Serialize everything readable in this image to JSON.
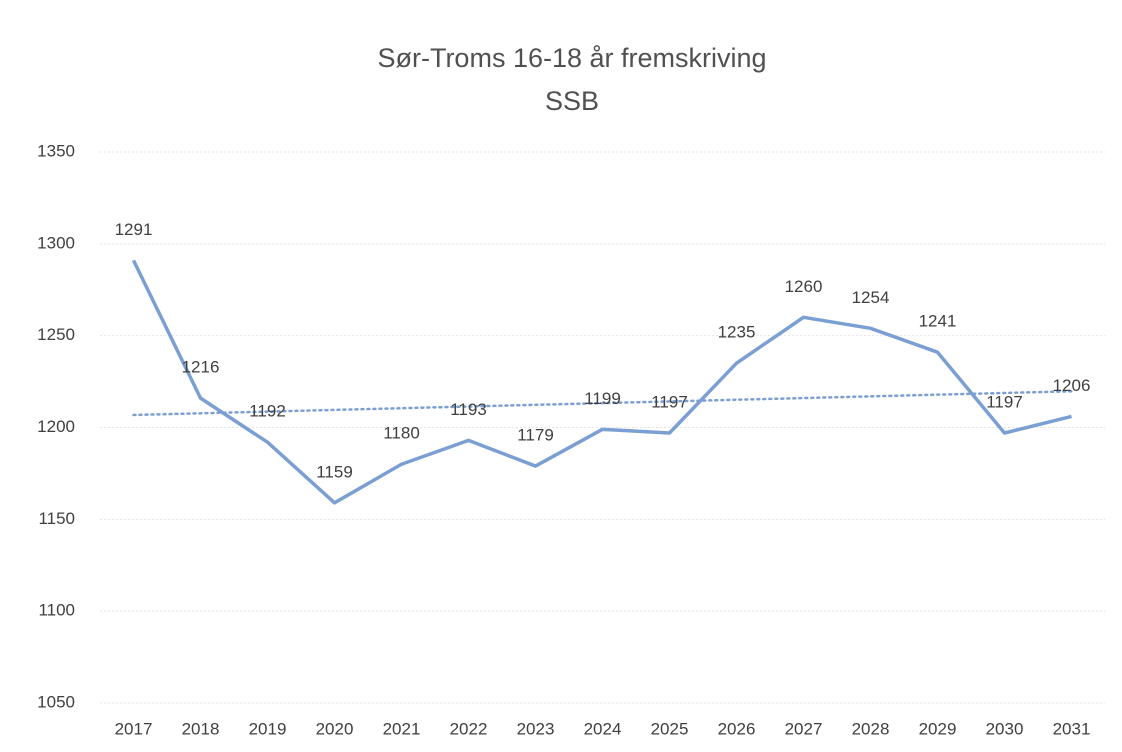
{
  "chart_data": {
    "type": "line",
    "title": "Sør-Troms 16-18 år fremskriving",
    "subtitle": "SSB",
    "categories": [
      "2017",
      "2018",
      "2019",
      "2020",
      "2021",
      "2022",
      "2023",
      "2024",
      "2025",
      "2026",
      "2027",
      "2028",
      "2029",
      "2030",
      "2031"
    ],
    "series": [
      {
        "name": "Sør-Troms 16-18 år",
        "color": "#7b9fd2",
        "values": [
          1291,
          1216,
          1192,
          1159,
          1180,
          1193,
          1179,
          1199,
          1197,
          1235,
          1260,
          1254,
          1241,
          1197,
          1206
        ]
      }
    ],
    "ylim": [
      1050,
      1350
    ],
    "yticks": [
      1050,
      1100,
      1150,
      1200,
      1250,
      1300,
      1350
    ],
    "grid": true,
    "trendline": "linear",
    "data_labels": true
  }
}
